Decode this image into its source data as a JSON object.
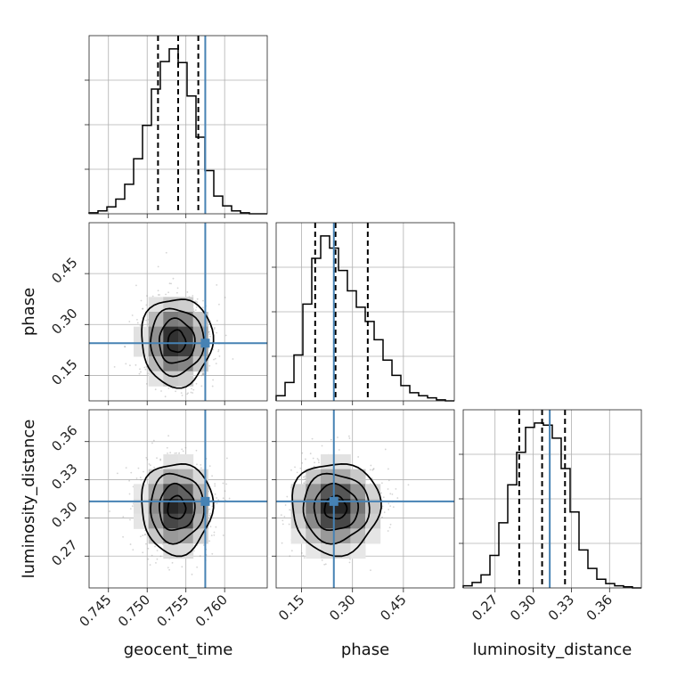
{
  "chart_data": {
    "type": "corner",
    "parameters": [
      {
        "name": "geocent_time",
        "range": [
          0.7425,
          0.7655
        ],
        "ticks": [
          0.745,
          0.75,
          0.755,
          0.76
        ],
        "tick_labels": [
          "0.745",
          "0.750",
          "0.755",
          "0.760"
        ],
        "truth": 0.7575,
        "quantiles": [
          0.7514,
          0.754,
          0.7566
        ]
      },
      {
        "name": "phase",
        "range": [
          0.075,
          0.6
        ],
        "ticks": [
          0.15,
          0.3,
          0.45
        ],
        "tick_labels": [
          "0.15",
          "0.30",
          "0.45"
        ],
        "truth": 0.245,
        "quantiles": [
          0.19,
          0.25,
          0.345
        ]
      },
      {
        "name": "luminosity_distance",
        "range": [
          0.245,
          0.385
        ],
        "ticks": [
          0.27,
          0.3,
          0.33,
          0.36
        ],
        "tick_labels": [
          "0.27",
          "0.30",
          "0.33",
          "0.36"
        ],
        "truth": 0.313,
        "quantiles": [
          0.289,
          0.307,
          0.325
        ]
      }
    ],
    "histograms": [
      {
        "parameter": "geocent_time",
        "bin_edges": [
          0.7425,
          0.74365,
          0.7448,
          0.74595,
          0.7471,
          0.74825,
          0.7494,
          0.75055,
          0.7517,
          0.75285,
          0.754,
          0.75515,
          0.7563,
          0.75745,
          0.7586,
          0.75975,
          0.7609,
          0.76205,
          0.7632,
          0.76435,
          0.7655
        ],
        "counts": [
          1,
          3,
          7,
          15,
          30,
          56,
          90,
          127,
          155,
          168,
          154,
          120,
          78,
          44,
          18,
          8,
          3,
          1,
          0,
          0
        ]
      },
      {
        "parameter": "phase",
        "bin_edges": [
          0.075,
          0.1013,
          0.1275,
          0.1538,
          0.18,
          0.2063,
          0.2325,
          0.2588,
          0.285,
          0.3113,
          0.3375,
          0.3638,
          0.39,
          0.4163,
          0.4425,
          0.4688,
          0.495,
          0.5213,
          0.5475,
          0.5738,
          0.6
        ],
        "counts": [
          5,
          18,
          45,
          95,
          140,
          162,
          150,
          128,
          108,
          92,
          78,
          60,
          40,
          25,
          15,
          8,
          5,
          3,
          1,
          0
        ]
      },
      {
        "parameter": "luminosity_distance",
        "bin_edges": [
          0.245,
          0.252,
          0.259,
          0.266,
          0.273,
          0.28,
          0.287,
          0.294,
          0.301,
          0.308,
          0.315,
          0.322,
          0.329,
          0.336,
          0.343,
          0.35,
          0.357,
          0.364,
          0.371,
          0.378,
          0.385
        ],
        "counts": [
          2,
          5,
          12,
          30,
          60,
          95,
          125,
          148,
          152,
          150,
          138,
          110,
          70,
          35,
          18,
          8,
          4,
          2,
          1,
          0
        ]
      }
    ],
    "pairs": [
      {
        "x": "geocent_time",
        "y": "phase",
        "center": [
          0.7538,
          0.25
        ],
        "sigma": [
          0.0023,
          0.065
        ]
      },
      {
        "x": "geocent_time",
        "y": "luminosity_distance",
        "center": [
          0.7538,
          0.308
        ],
        "sigma": [
          0.0023,
          0.018
        ]
      },
      {
        "x": "phase",
        "y": "luminosity_distance",
        "center": [
          0.25,
          0.308
        ],
        "sigma": [
          0.065,
          0.018
        ]
      }
    ],
    "grid": true,
    "colors": {
      "truth": "#4682b4",
      "histogram": "#000000",
      "contours": "#000000",
      "points": "#888888"
    }
  }
}
